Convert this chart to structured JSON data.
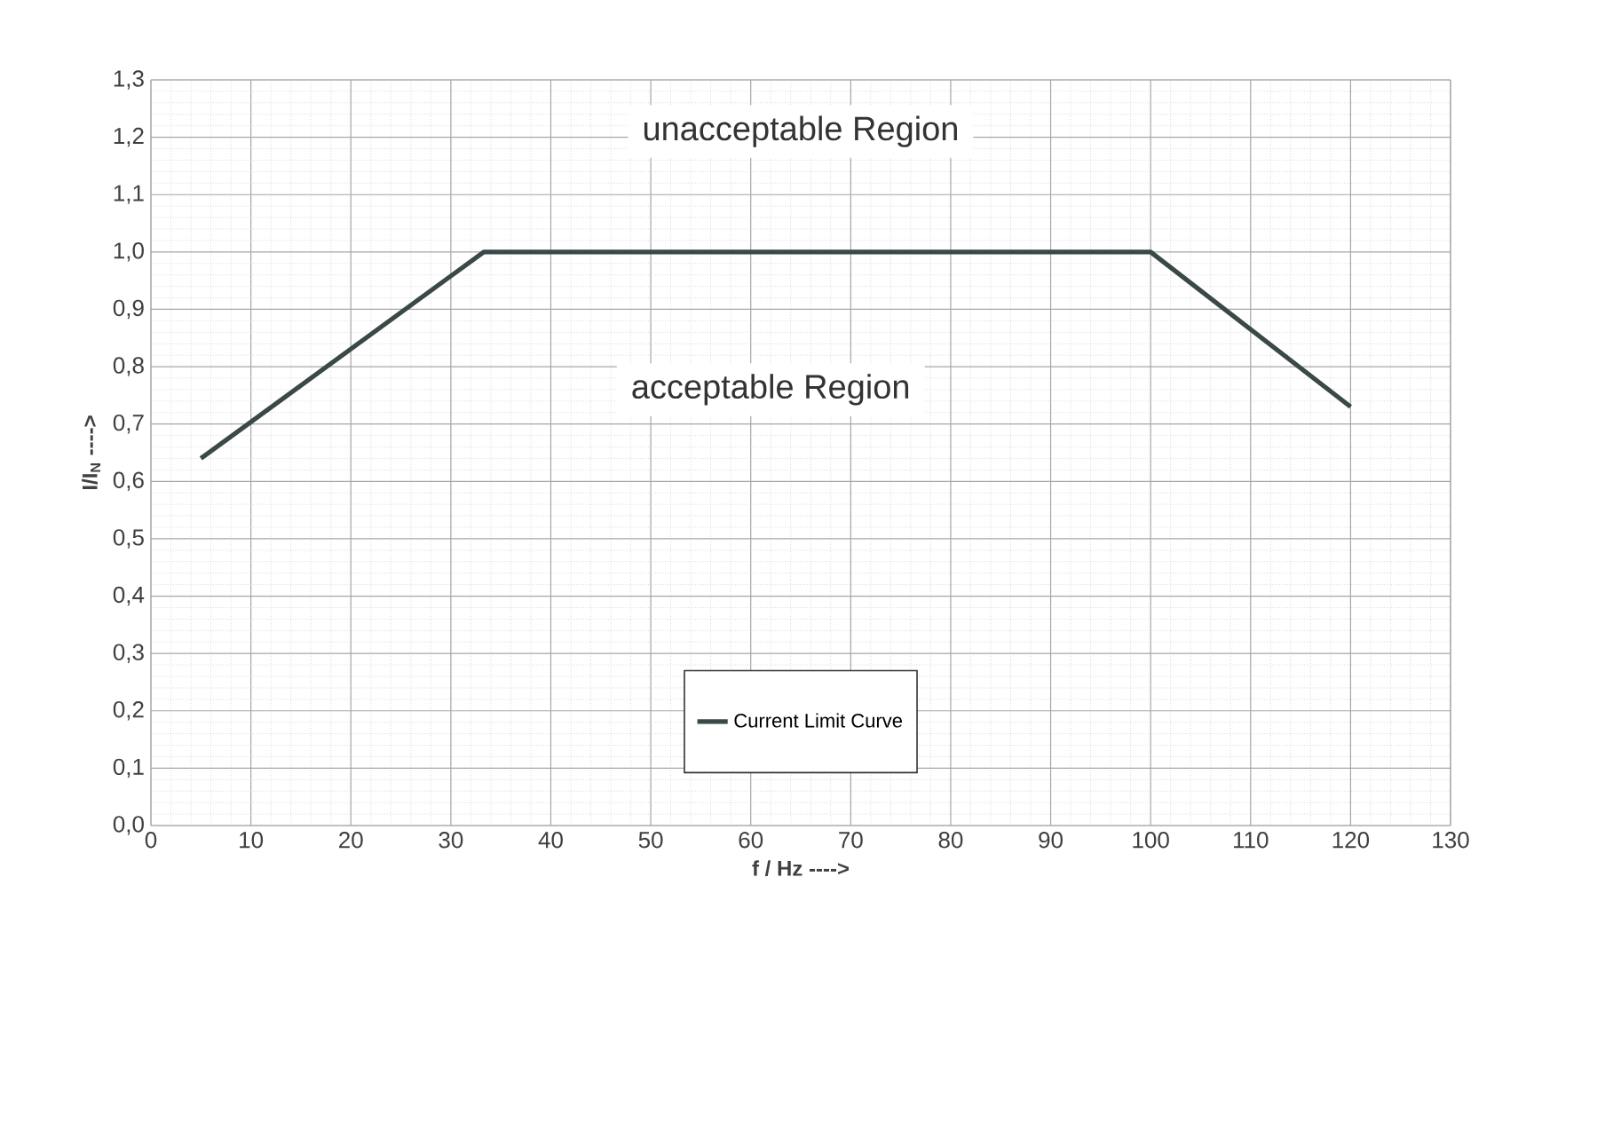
{
  "chart_data": {
    "type": "line",
    "xlabel": "f / Hz ---->",
    "ylabel": "I/I$_{N}$ ---->",
    "x": [
      5,
      33.3,
      100,
      120
    ],
    "series": [
      {
        "name": "Current Limit Curve",
        "color": "#3b4848",
        "values": [
          0.64,
          1.0,
          1.0,
          0.73
        ]
      }
    ],
    "xlim": [
      0,
      130
    ],
    "xticks": [
      0,
      10,
      20,
      30,
      40,
      50,
      60,
      70,
      80,
      90,
      100,
      110,
      120,
      130
    ],
    "ylim": [
      0,
      1.3
    ],
    "yticks": [
      {
        "value": 0,
        "label": "0,0"
      },
      {
        "value": 0.1,
        "label": "0,1"
      },
      {
        "value": 0.2,
        "label": "0,2"
      },
      {
        "value": 0.3,
        "label": "0,3"
      },
      {
        "value": 0.4,
        "label": "0,4"
      },
      {
        "value": 0.5,
        "label": "0,5"
      },
      {
        "value": 0.6,
        "label": "0,6"
      },
      {
        "value": 0.7,
        "label": "0,7"
      },
      {
        "value": 0.8,
        "label": "0,8"
      },
      {
        "value": 0.9,
        "label": "0,9"
      },
      {
        "value": 1.0,
        "label": "1,0"
      },
      {
        "value": 1.1,
        "label": "1,1"
      },
      {
        "value": 1.2,
        "label": "1,2"
      },
      {
        "value": 1.3,
        "label": "1,3"
      }
    ],
    "annotations": [
      "unacceptable Region",
      "acceptable Region"
    ],
    "grid": true,
    "legend": "bottom",
    "marker": "none",
    "line_style": "solid"
  }
}
